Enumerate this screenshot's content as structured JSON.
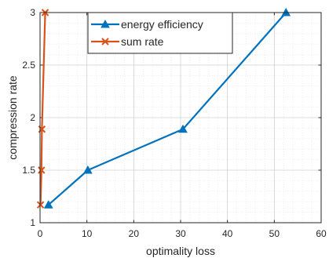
{
  "chart_data": {
    "type": "line",
    "xlabel": "optimality loss",
    "ylabel": "compression rate",
    "xlim": [
      0,
      60
    ],
    "ylim": [
      1,
      3
    ],
    "xticks": [
      0,
      10,
      20,
      30,
      40,
      50,
      60
    ],
    "yticks": [
      1,
      1.5,
      2,
      2.5,
      3
    ],
    "ytick_labels": [
      "1",
      "1.5",
      "2",
      "2.5",
      "3"
    ],
    "grid": true,
    "minor_grid": true,
    "legend_position": "top-center",
    "series": [
      {
        "name": "energy efficiency",
        "color": "#0072BD",
        "marker": "triangle",
        "points": [
          [
            1.8,
            1.17
          ],
          [
            10.2,
            1.5
          ],
          [
            30.5,
            1.89
          ],
          [
            52.5,
            3.0
          ]
        ]
      },
      {
        "name": "sum rate",
        "color": "#D95319",
        "marker": "x",
        "points": [
          [
            0.1,
            1.17
          ],
          [
            0.3,
            1.5
          ],
          [
            0.4,
            1.89
          ],
          [
            1.1,
            3.0
          ]
        ]
      }
    ]
  }
}
